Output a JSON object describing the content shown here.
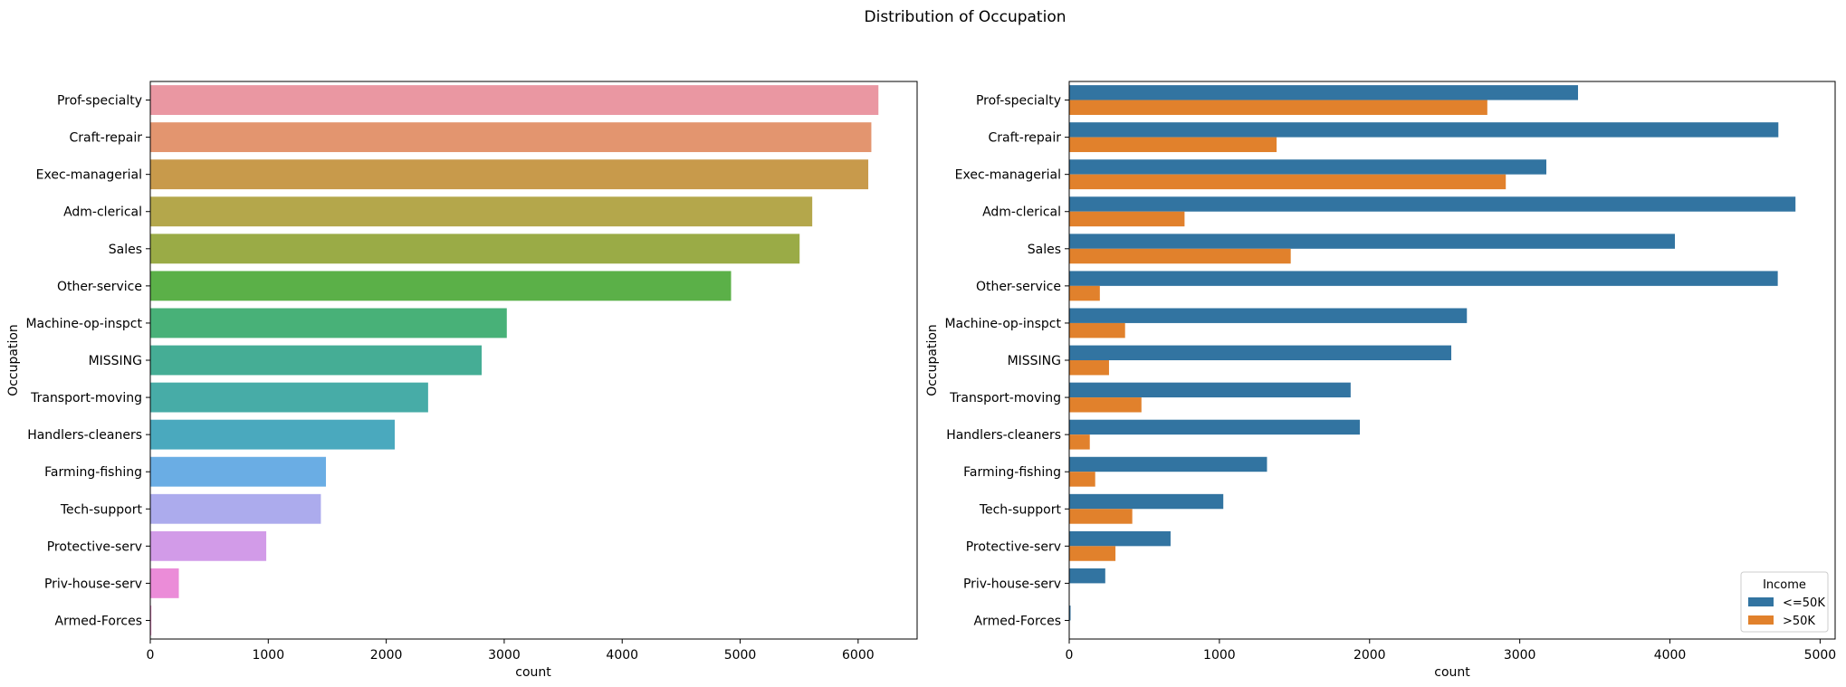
{
  "title": "Distribution of Occupation",
  "chart_data": [
    {
      "type": "bar",
      "orientation": "horizontal",
      "ylabel": "Occupation",
      "xlabel": "count",
      "categories": [
        "Prof-specialty",
        "Craft-repair",
        "Exec-managerial",
        "Adm-clerical",
        "Sales",
        "Other-service",
        "Machine-op-inspct",
        "MISSING",
        "Transport-moving",
        "Handlers-cleaners",
        "Farming-fishing",
        "Tech-support",
        "Protective-serv",
        "Priv-house-serv",
        "Armed-Forces"
      ],
      "values": [
        6172,
        6112,
        6086,
        5611,
        5504,
        4923,
        3022,
        2809,
        2355,
        2072,
        1489,
        1446,
        983,
        242,
        9
      ],
      "colors": [
        "#ea97a2",
        "#e3956f",
        "#c89a4b",
        "#b4a74b",
        "#9aab46",
        "#5bb048",
        "#48b178",
        "#45ad95",
        "#47aca7",
        "#4aa9be",
        "#6aade4",
        "#acabed",
        "#d29be8",
        "#eb8cd8",
        "#f08cc8"
      ],
      "xlim": [
        0,
        6500
      ],
      "xticks": [
        0,
        1000,
        2000,
        3000,
        4000,
        5000,
        6000
      ],
      "grid": false
    },
    {
      "type": "bar",
      "orientation": "horizontal",
      "ylabel": "Occupation",
      "xlabel": "count",
      "categories": [
        "Prof-specialty",
        "Craft-repair",
        "Exec-managerial",
        "Adm-clerical",
        "Sales",
        "Other-service",
        "Machine-op-inspct",
        "MISSING",
        "Transport-moving",
        "Handlers-cleaners",
        "Farming-fishing",
        "Tech-support",
        "Protective-serv",
        "Priv-house-serv",
        "Armed-Forces"
      ],
      "series": [
        {
          "name": "<=50K",
          "color": "#3274a1",
          "values": [
            3388,
            4722,
            3177,
            4836,
            4033,
            4718,
            2648,
            2544,
            1874,
            1935,
            1317,
            1026,
            675,
            240,
            9
          ]
        },
        {
          "name": ">50K",
          "color": "#e1812c",
          "values": [
            2784,
            1381,
            2907,
            768,
            1475,
            204,
            372,
            265,
            481,
            137,
            173,
            420,
            308,
            1,
            0
          ]
        }
      ],
      "xlim": [
        0,
        5100
      ],
      "xticks": [
        0,
        1000,
        2000,
        3000,
        4000,
        5000
      ],
      "legend": {
        "title": "Income",
        "placement": "lower-right"
      },
      "grid": false
    }
  ]
}
